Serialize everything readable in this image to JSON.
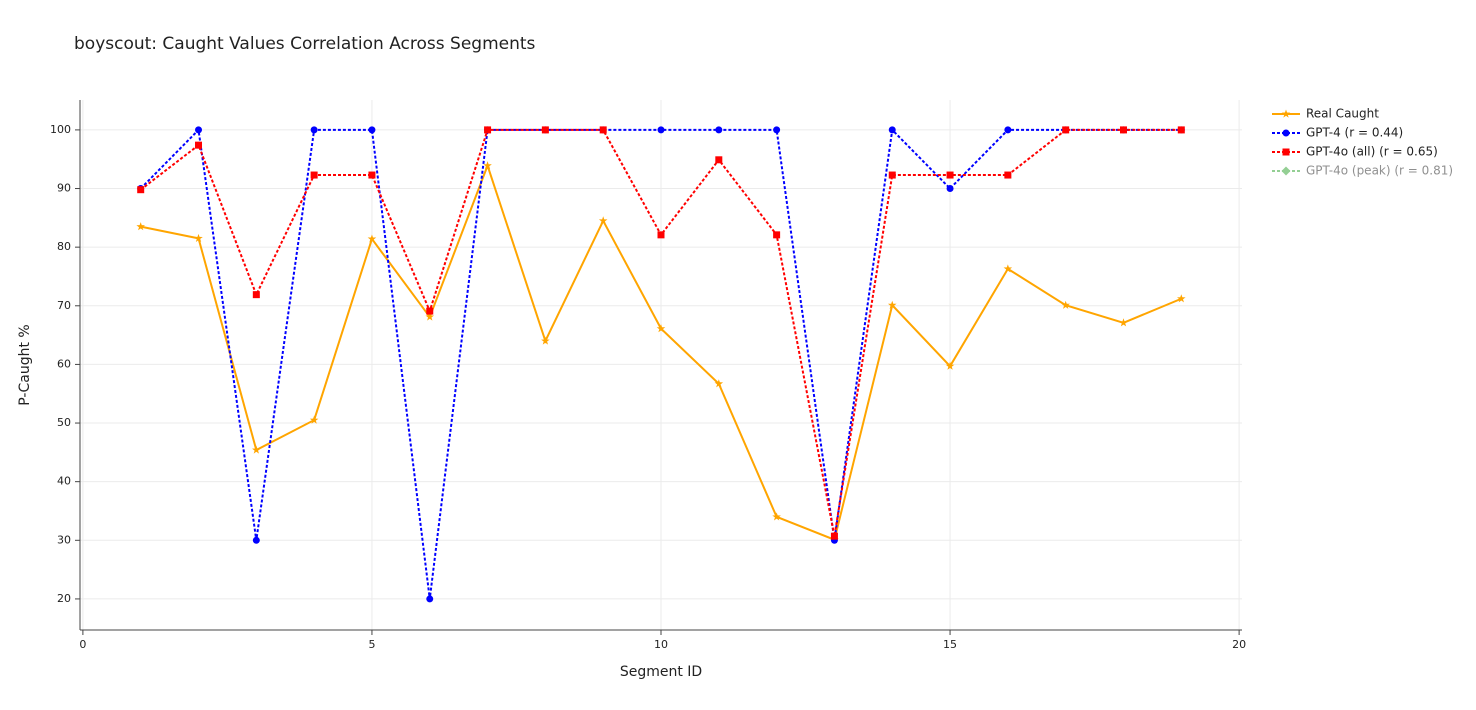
{
  "chart_data": {
    "type": "line",
    "title": "boyscout: Caught Values Correlation Across Segments",
    "x_label": "Segment ID",
    "y_label": "P-Caught %",
    "x": [
      1,
      2,
      3,
      4,
      5,
      6,
      7,
      8,
      9,
      10,
      11,
      12,
      13,
      14,
      15,
      16,
      17,
      18,
      19
    ],
    "series": [
      {
        "name": "Real Caught",
        "color": "#ffa500",
        "marker": "star",
        "dash": "solid",
        "values": [
          83.5,
          81.5,
          45.4,
          50.5,
          81.4,
          68.1,
          93.9,
          64.0,
          84.5,
          66.1,
          56.7,
          34.0,
          30.1,
          70.1,
          59.7,
          76.3,
          70.1,
          67.1,
          71.2
        ]
      },
      {
        "name": "GPT-4 (r = 0.44)",
        "color": "#0000ff",
        "marker": "circle",
        "dash": "dot",
        "values": [
          90,
          100,
          30,
          100,
          100,
          20,
          100,
          100,
          100,
          100,
          100,
          100,
          30,
          100,
          90,
          100,
          100,
          100,
          100
        ]
      },
      {
        "name": "GPT-4o (all) (r = 0.65)",
        "color": "#ff0000",
        "marker": "square",
        "dash": "dot",
        "values": [
          89.8,
          97.4,
          71.9,
          92.3,
          92.3,
          69.1,
          100,
          100,
          100,
          82.1,
          94.9,
          82.1,
          30.7,
          92.3,
          92.3,
          92.3,
          100,
          100,
          100
        ]
      },
      {
        "name": "GPT-4o (peak) (r = 0.81)",
        "color": "#2ca02c",
        "marker": "diamond",
        "dash": "dot",
        "visible": false
      }
    ],
    "xlim": [
      -0.05,
      20.05
    ],
    "xticks": [
      0,
      5,
      10,
      15,
      20
    ],
    "ylim": [
      14.7,
      105.1
    ],
    "yticks": [
      20,
      30,
      40,
      50,
      60,
      70,
      80,
      90,
      100
    ],
    "grid": true,
    "legend": "right"
  }
}
